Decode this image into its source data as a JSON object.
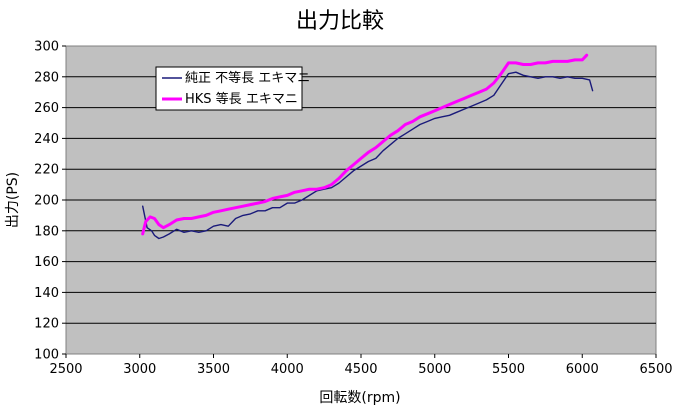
{
  "chart_data": {
    "type": "line",
    "title": "出力比較",
    "xlabel": "回転数(rpm)",
    "ylabel": "出力(PS)",
    "xlim": [
      2500,
      6500
    ],
    "ylim": [
      100,
      300
    ],
    "xticks": [
      2500,
      3000,
      3500,
      4000,
      4500,
      5000,
      5500,
      6000,
      6500
    ],
    "yticks": [
      100,
      120,
      140,
      160,
      180,
      200,
      220,
      240,
      260,
      280,
      300
    ],
    "grid": "horizontal",
    "legend_position": "top-left",
    "plot_background": "#c0c0c0",
    "series": [
      {
        "name": "純正 不等長 エキマニ",
        "color": "#1a1a7a",
        "x": [
          3020,
          3050,
          3080,
          3100,
          3130,
          3160,
          3200,
          3250,
          3300,
          3350,
          3400,
          3450,
          3500,
          3550,
          3600,
          3650,
          3700,
          3750,
          3800,
          3850,
          3900,
          3950,
          4000,
          4050,
          4100,
          4150,
          4200,
          4250,
          4300,
          4350,
          4400,
          4450,
          4500,
          4550,
          4600,
          4650,
          4700,
          4750,
          4800,
          4850,
          4900,
          4950,
          5000,
          5050,
          5100,
          5150,
          5200,
          5250,
          5300,
          5350,
          5400,
          5450,
          5500,
          5550,
          5600,
          5650,
          5700,
          5750,
          5800,
          5850,
          5900,
          5950,
          6000,
          6050,
          6070
        ],
        "values": [
          196,
          182,
          180,
          177,
          175,
          176,
          178,
          181,
          179,
          180,
          179,
          180,
          183,
          184,
          183,
          188,
          190,
          191,
          193,
          193,
          195,
          195,
          198,
          198,
          200,
          203,
          206,
          207,
          208,
          211,
          215,
          219,
          222,
          225,
          227,
          232,
          236,
          240,
          243,
          246,
          249,
          251,
          253,
          254,
          255,
          257,
          259,
          261,
          263,
          265,
          268,
          275,
          282,
          283,
          281,
          280,
          279,
          280,
          280,
          279,
          280,
          279,
          279,
          278,
          271
        ]
      },
      {
        "name": "HKS 等長 エキマニ",
        "color": "#ff00ff",
        "x": [
          3020,
          3040,
          3070,
          3100,
          3130,
          3160,
          3200,
          3250,
          3300,
          3350,
          3400,
          3450,
          3500,
          3550,
          3600,
          3650,
          3700,
          3750,
          3800,
          3850,
          3900,
          3950,
          4000,
          4050,
          4100,
          4150,
          4200,
          4250,
          4300,
          4350,
          4400,
          4450,
          4500,
          4550,
          4600,
          4650,
          4700,
          4750,
          4800,
          4850,
          4900,
          4950,
          5000,
          5050,
          5100,
          5150,
          5200,
          5250,
          5300,
          5350,
          5400,
          5450,
          5500,
          5550,
          5600,
          5650,
          5700,
          5750,
          5800,
          5850,
          5900,
          5950,
          6000,
          6030
        ],
        "values": [
          178,
          186,
          189,
          188,
          184,
          182,
          184,
          187,
          188,
          188,
          189,
          190,
          192,
          193,
          194,
          195,
          196,
          197,
          198,
          199,
          201,
          202,
          203,
          205,
          206,
          207,
          207,
          208,
          210,
          214,
          219,
          223,
          227,
          231,
          234,
          238,
          242,
          245,
          249,
          251,
          254,
          256,
          258,
          260,
          262,
          264,
          266,
          268,
          270,
          272,
          276,
          282,
          289,
          289,
          288,
          288,
          289,
          289,
          290,
          290,
          290,
          291,
          291,
          294
        ]
      }
    ]
  }
}
